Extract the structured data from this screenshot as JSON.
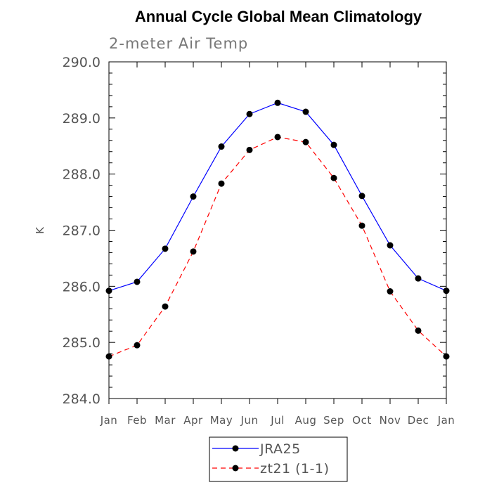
{
  "chart_data": {
    "type": "line",
    "title": "Annual Cycle Global Mean Climatology",
    "subtitle": "2-meter Air Temp",
    "xlabel": "",
    "ylabel": "K",
    "categories": [
      "Jan",
      "Feb",
      "Mar",
      "Apr",
      "May",
      "Jun",
      "Jul",
      "Aug",
      "Sep",
      "Oct",
      "Nov",
      "Dec",
      "Jan"
    ],
    "ylim": [
      284.0,
      290.0
    ],
    "yticks": [
      284.0,
      285.0,
      286.0,
      287.0,
      288.0,
      289.0,
      290.0
    ],
    "ytick_labels": [
      "284.0",
      "285.0",
      "286.0",
      "287.0",
      "288.0",
      "289.0",
      "290.0"
    ],
    "grid": false,
    "legend": "bottom",
    "series": [
      {
        "name": "JRA25",
        "color": "#0000ff",
        "dash": "solid",
        "values": [
          285.92,
          286.08,
          286.67,
          287.6,
          288.49,
          289.07,
          289.27,
          289.11,
          288.52,
          287.61,
          286.73,
          286.14,
          285.92
        ]
      },
      {
        "name": "zt21 (1-1)",
        "color": "#ff0000",
        "dash": "dashed",
        "values": [
          284.75,
          284.95,
          285.64,
          286.62,
          287.83,
          288.43,
          288.66,
          288.57,
          287.93,
          287.08,
          285.91,
          285.21,
          284.75
        ]
      }
    ]
  }
}
